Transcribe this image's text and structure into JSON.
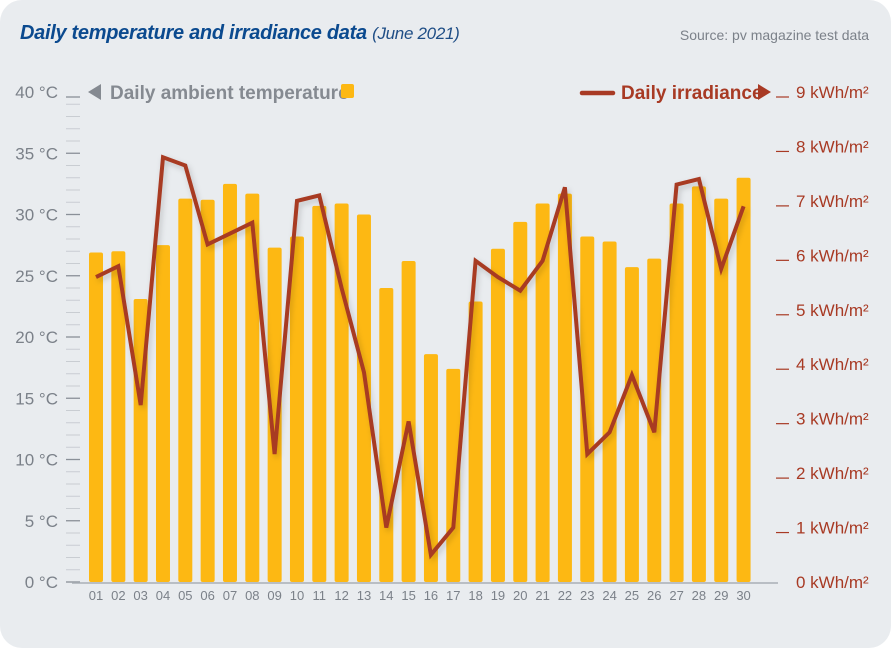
{
  "header": {
    "title": "Daily temperature and irradiance data",
    "title_suffix": "(June 2021)",
    "source": "Source: pv magazine test data"
  },
  "colors": {
    "bar": "#fdb813",
    "line": "#a83a24",
    "title": "#0b4a8f",
    "axis_text": "#7b8189",
    "background": "#e9ecef"
  },
  "chart_data": {
    "type": "bar",
    "title": "Daily temperature and irradiance data (June 2021)",
    "xlabel": "",
    "categories": [
      "01",
      "02",
      "03",
      "04",
      "05",
      "06",
      "07",
      "08",
      "09",
      "10",
      "11",
      "12",
      "13",
      "14",
      "15",
      "16",
      "17",
      "18",
      "19",
      "20",
      "21",
      "22",
      "23",
      "24",
      "25",
      "26",
      "27",
      "28",
      "29",
      "30"
    ],
    "series": [
      {
        "name": "Daily ambient temperature",
        "type": "bar",
        "axis": "left",
        "unit": "°C",
        "values": [
          26.9,
          27.0,
          23.1,
          27.5,
          31.3,
          31.2,
          32.5,
          31.7,
          27.3,
          28.2,
          30.7,
          30.9,
          30.0,
          24.0,
          26.2,
          18.6,
          17.4,
          22.9,
          27.2,
          29.4,
          30.9,
          31.7,
          28.2,
          27.8,
          25.7,
          26.4,
          30.9,
          32.3,
          31.3,
          33.0
        ]
      },
      {
        "name": "Daily irradiance",
        "type": "line",
        "axis": "right",
        "unit": "kWh/m²",
        "values": [
          5.6,
          5.8,
          3.25,
          7.8,
          7.65,
          6.2,
          6.4,
          6.6,
          2.35,
          7.0,
          7.1,
          5.4,
          3.85,
          1.0,
          2.95,
          0.5,
          1.0,
          5.9,
          5.6,
          5.35,
          5.9,
          7.25,
          2.35,
          2.75,
          3.8,
          2.75,
          7.3,
          7.4,
          5.75,
          6.9
        ]
      }
    ],
    "left_axis": {
      "ylim": [
        0,
        40
      ],
      "ticks": [
        {
          "value": 0,
          "label": "0 °C"
        },
        {
          "value": 5,
          "label": "5 °C"
        },
        {
          "value": 10,
          "label": "10 °C"
        },
        {
          "value": 15,
          "label": "15 °C"
        },
        {
          "value": 20,
          "label": "20 °C"
        },
        {
          "value": 25,
          "label": "25 °C"
        },
        {
          "value": 30,
          "label": "30 °C"
        },
        {
          "value": 35,
          "label": "35 °C"
        },
        {
          "value": 40,
          "label": "40 °C"
        }
      ]
    },
    "right_axis": {
      "ylim": [
        0,
        9
      ],
      "ticks": [
        {
          "value": 0,
          "label": "0 kWh/m²"
        },
        {
          "value": 1,
          "label": "1 kWh/m²"
        },
        {
          "value": 2,
          "label": "2 kWh/m²"
        },
        {
          "value": 3,
          "label": "3 kWh/m²"
        },
        {
          "value": 4,
          "label": "4 kWh/m²"
        },
        {
          "value": 5,
          "label": "5 kWh/m²"
        },
        {
          "value": 6,
          "label": "6 kWh/m²"
        },
        {
          "value": 7,
          "label": "7 kWh/m²"
        },
        {
          "value": 8,
          "label": "8 kWh/m²"
        },
        {
          "value": 9,
          "label": "9 kWh/m²"
        }
      ]
    },
    "legend": {
      "left": {
        "label": "Daily ambient temperature",
        "placement": "top-left"
      },
      "right": {
        "label": "Daily irradiance",
        "placement": "top-right"
      }
    },
    "grid": false
  }
}
